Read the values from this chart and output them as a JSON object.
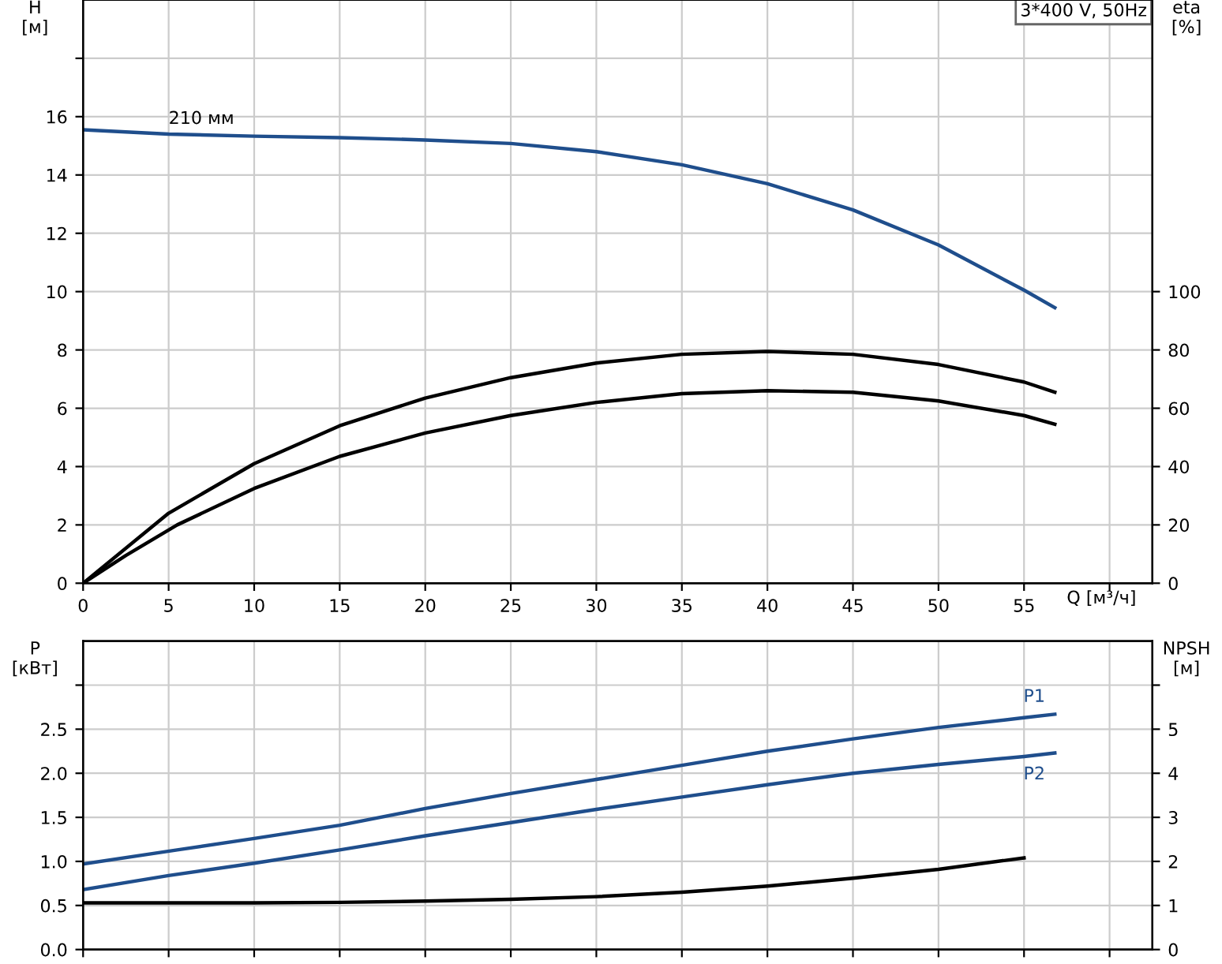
{
  "chart_data": [
    {
      "type": "line",
      "title": "3*400 V, 50Hz",
      "xlabel": "Q [м³/ч]",
      "ylabel": "H\n[м]",
      "y2label": "eta\n[%]",
      "xlim": [
        0,
        62.5
      ],
      "xticks": [
        0,
        5,
        10,
        15,
        20,
        25,
        30,
        35,
        40,
        45,
        50,
        55,
        {
          "value": 60,
          "label": null
        }
      ],
      "ylim": [
        0,
        20
      ],
      "yticks": [
        0,
        2,
        4,
        6,
        8,
        10,
        12,
        14,
        16,
        {
          "value": 18,
          "label": null
        }
      ],
      "y2lim": [
        0,
        200
      ],
      "y2ticks": [
        0,
        20,
        40,
        60,
        80,
        100
      ],
      "grid": true,
      "annotations": [
        {
          "text": "210 мм",
          "x": 5,
          "y": 15.4
        }
      ],
      "series": [
        {
          "color": "#1f4e8c",
          "x": [
            0,
            5,
            10,
            15,
            20,
            25,
            30,
            35,
            40,
            45,
            50,
            55,
            56.8
          ],
          "values": [
            15.55,
            15.4,
            15.33,
            15.28,
            15.2,
            15.08,
            14.8,
            14.35,
            13.7,
            12.8,
            11.6,
            10.05,
            9.45
          ]
        },
        {
          "color": "#000000",
          "axis": "y2",
          "x": [
            0,
            5,
            10,
            15,
            20,
            25,
            30,
            35,
            40,
            45,
            50,
            55,
            56.8
          ],
          "values": [
            0,
            24,
            41,
            54,
            63.5,
            70.5,
            75.5,
            78.5,
            79.5,
            78.5,
            75,
            69,
            65.5
          ]
        },
        {
          "color": "#000000",
          "axis": "y2",
          "x": [
            0,
            2.5,
            5.5,
            10,
            15,
            20,
            25,
            30,
            35,
            40,
            45,
            50,
            55,
            56.8
          ],
          "values": [
            0,
            9.5,
            20,
            32.5,
            43.5,
            51.5,
            57.5,
            62,
            65,
            66,
            65.5,
            62.5,
            57.5,
            54.5
          ]
        }
      ]
    },
    {
      "type": "line",
      "ylabel": "P\n[кВт]",
      "y2label": "NPSH\n[м]",
      "tick_labels": "y",
      "xlim": [
        0,
        62.5
      ],
      "xticks": [
        0,
        5,
        10,
        15,
        20,
        25,
        30,
        35,
        40,
        45,
        50,
        55,
        60
      ],
      "ylim": [
        0,
        3.5
      ],
      "yticks": [
        {
          "value": 0,
          "label": "0.0"
        },
        0.5,
        {
          "value": 1,
          "label": "1.0"
        },
        1.5,
        {
          "value": 2,
          "label": "2.0"
        },
        2.5,
        {
          "value": 3,
          "label": null
        }
      ],
      "y2lim": [
        0,
        7
      ],
      "y2ticks": [
        0,
        1,
        2,
        3,
        4,
        5,
        {
          "value": 6,
          "label": null
        }
      ],
      "grid": true,
      "series": [
        {
          "name": "P1",
          "color": "#1f4e8c",
          "x": [
            0,
            5.5,
            10,
            15,
            20,
            25,
            30,
            35,
            40,
            45,
            50,
            55,
            56.8
          ],
          "values": [
            0.97,
            1.13,
            1.26,
            1.41,
            1.6,
            1.77,
            1.93,
            2.09,
            2.25,
            2.39,
            2.52,
            2.63,
            2.67
          ]
        },
        {
          "name": "P2",
          "color": "#1f4e8c",
          "x": [
            0,
            5,
            10,
            15,
            20,
            25,
            30,
            35,
            40,
            45,
            50,
            55,
            56.8
          ],
          "values": [
            0.68,
            0.84,
            0.98,
            1.13,
            1.29,
            1.44,
            1.59,
            1.73,
            1.87,
            2.0,
            2.1,
            2.19,
            2.23
          ]
        },
        {
          "color": "#000000",
          "axis": "y2",
          "x": [
            0,
            5.5,
            10,
            15,
            20,
            25,
            30,
            35,
            40,
            45,
            50,
            55
          ],
          "values": [
            1.06,
            1.06,
            1.06,
            1.07,
            1.1,
            1.14,
            1.2,
            1.3,
            1.44,
            1.62,
            1.82,
            2.08
          ]
        }
      ]
    }
  ]
}
